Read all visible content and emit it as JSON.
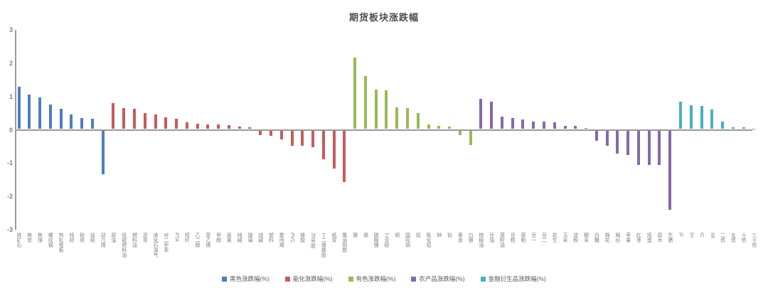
{
  "title": "期货板块涨跌幅",
  "chart_data": {
    "type": "bar",
    "title": "期货板块涨跌幅",
    "xlabel": "",
    "ylabel": "",
    "ylim": [
      -3,
      3
    ],
    "yticks": [
      3,
      2,
      1,
      0,
      -1,
      -2,
      -3
    ],
    "grid": false,
    "legend_position": "bottom",
    "series": [
      {
        "name": "黑色涨跌幅(%)",
        "color": "#4d7ebf",
        "points": [
          [
            "铁矿石",
            1.27
          ],
          [
            "焦炭",
            1.03
          ],
          [
            "焦煤",
            0.95
          ],
          [
            "螺纹钢",
            0.73
          ],
          [
            "热轧卷板",
            0.62
          ],
          [
            "线材",
            0.43
          ],
          [
            "硅铁",
            0.34
          ],
          [
            "锰硅",
            0.3
          ],
          [
            "动力煤",
            -1.3
          ]
        ]
      },
      {
        "name": "能化涨跌幅(%)",
        "color": "#c75b5b",
        "points": [
          [
            "原油",
            0.78
          ],
          [
            "低硫燃料油",
            0.64
          ],
          [
            "燃料油",
            0.61
          ],
          [
            "沥青",
            0.48
          ],
          [
            "液化石油气",
            0.44
          ],
          [
            "对二甲苯",
            0.35
          ],
          [
            "PTA",
            0.31
          ],
          [
            "短纤",
            0.2
          ],
          [
            "乙二醇",
            0.16
          ],
          [
            "苯乙烯",
            0.14
          ],
          [
            "甲醇",
            0.13
          ],
          [
            "尿素",
            0.12
          ],
          [
            "纯碱",
            0.08
          ],
          [
            "玻璃",
            0.05
          ],
          [
            "烧碱",
            -0.12
          ],
          [
            "塑料",
            -0.14
          ],
          [
            "聚丙烯",
            -0.25
          ],
          [
            "PVC",
            -0.46
          ],
          [
            "橡胶",
            -0.46
          ],
          [
            "20号胶",
            -0.5
          ],
          [
            "丁二烯橡胶",
            -0.85
          ],
          [
            "纸浆",
            -1.13
          ],
          [
            "集运指数",
            -1.54
          ]
        ]
      },
      {
        "name": "有色涨跌幅(%)",
        "color": "#98ba55",
        "points": [
          [
            "镍",
            2.16
          ],
          [
            "锡",
            1.6
          ],
          [
            "碳酸锂",
            1.19
          ],
          [
            "工业硅",
            1.17
          ],
          [
            "铜",
            0.66
          ],
          [
            "国际铜",
            0.63
          ],
          [
            "铝",
            0.48
          ],
          [
            "氧化铝",
            0.14
          ],
          [
            "锌",
            0.1
          ],
          [
            "铅",
            0.08
          ],
          [
            "黄金",
            -0.12
          ],
          [
            "白银",
            -0.42
          ]
        ]
      },
      {
        "name": "农产品涨跌幅(%)",
        "color": "#8569a8",
        "points": [
          [
            "棕榈油",
            0.91
          ],
          [
            "豆油",
            0.83
          ],
          [
            "菜籽油",
            0.38
          ],
          [
            "豆粕",
            0.33
          ],
          [
            "菜粕",
            0.29
          ],
          [
            "豆一",
            0.23
          ],
          [
            "豆二",
            0.23
          ],
          [
            "花生",
            0.2
          ],
          [
            "玉米",
            0.1
          ],
          [
            "淀粉",
            0.1
          ],
          [
            "粳米",
            0.03
          ],
          [
            "白糖",
            -0.29
          ],
          [
            "棉花",
            -0.46
          ],
          [
            "棉纱",
            -0.68
          ],
          [
            "苹果",
            -0.72
          ],
          [
            "红枣",
            -1.02
          ],
          [
            "鸡蛋",
            -1.02
          ],
          [
            "原木",
            -1.02
          ],
          [
            "生猪",
            -2.38
          ]
        ]
      },
      {
        "name": "金融衍生品涨跌幅(%)",
        "color": "#4aaec8",
        "points": [
          [
            "IF",
            0.83
          ],
          [
            "IH",
            0.72
          ],
          [
            "IC",
            0.7
          ],
          [
            "IM",
            0.59
          ],
          [
            "二债",
            0.23
          ],
          [
            "五债",
            0.05
          ],
          [
            "十债",
            0.05
          ],
          [
            "三十债",
            0.01
          ]
        ]
      }
    ]
  }
}
